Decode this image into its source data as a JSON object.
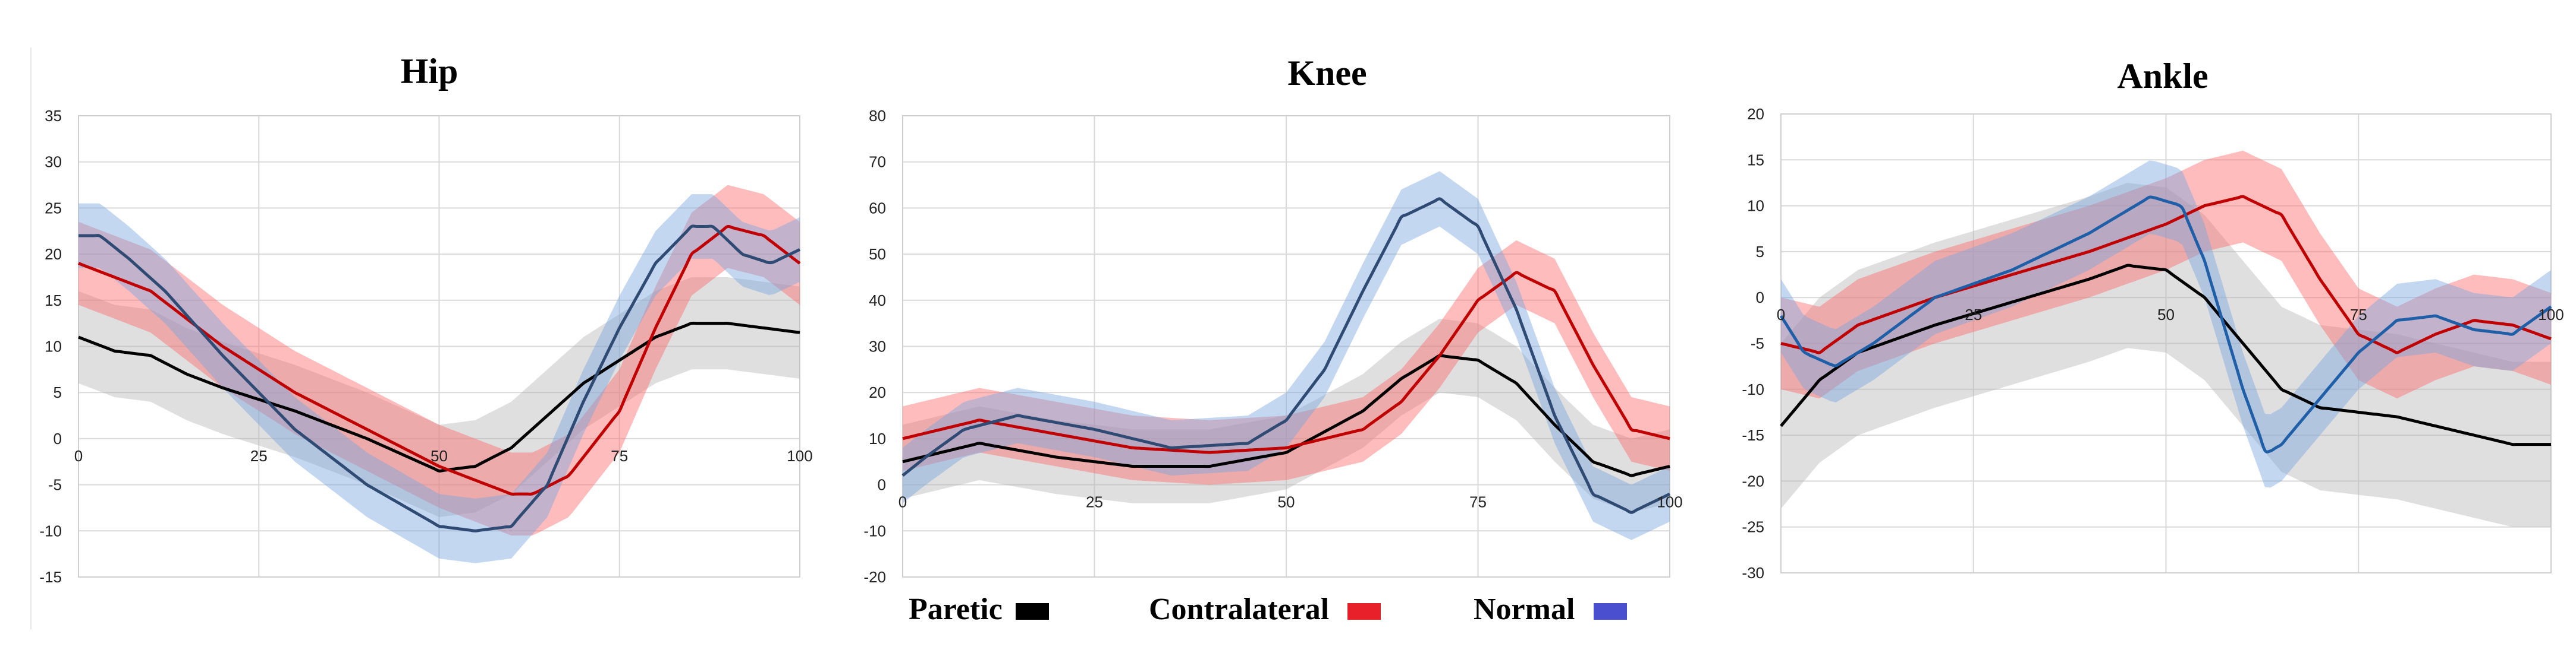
{
  "chart_data": [
    {
      "type": "line",
      "title": "Hip",
      "xlim": [
        0,
        100
      ],
      "ylim": [
        -15,
        35
      ],
      "xticks": [
        0,
        25,
        50,
        75,
        100
      ],
      "yticks": [
        -15,
        -10,
        -5,
        0,
        5,
        10,
        15,
        20,
        25,
        30,
        35
      ],
      "grid": true,
      "series": [
        {
          "name": "Paretic",
          "color": "#000000",
          "band_color": "#b3b3b3",
          "band_sd": 5,
          "x": [
            0,
            5,
            10,
            15,
            20,
            30,
            40,
            50,
            55,
            60,
            65,
            70,
            75,
            80,
            85,
            90,
            95,
            100
          ],
          "y": [
            11,
            9.5,
            9,
            7,
            5.5,
            3,
            0,
            -3.5,
            -3,
            -1,
            2.5,
            6,
            8.5,
            11,
            12.5,
            12.5,
            12,
            11.5
          ]
        },
        {
          "name": "Contralateral",
          "color": "#c00000",
          "band_color": "#ff6b6b",
          "band_sd": 4.5,
          "x": [
            0,
            5,
            10,
            15,
            20,
            30,
            40,
            50,
            55,
            60,
            63,
            68,
            75,
            80,
            85,
            90,
            95,
            100
          ],
          "y": [
            19,
            17.5,
            16,
            13,
            10,
            5,
            1,
            -3,
            -4.5,
            -6,
            -6,
            -4,
            3,
            12,
            20,
            23,
            22,
            19
          ]
        },
        {
          "name": "Normal",
          "color": "#2f4a73",
          "band_color": "#7aa6e0",
          "band_sd": 3.5,
          "x": [
            0,
            3,
            7,
            12,
            20,
            30,
            40,
            50,
            55,
            60,
            65,
            70,
            75,
            80,
            85,
            88,
            92,
            96,
            100
          ],
          "y": [
            22,
            22,
            19.5,
            16,
            9,
            1,
            -5,
            -9.5,
            -10,
            -9.5,
            -5,
            4,
            12,
            19,
            23,
            23,
            20,
            19,
            20.5
          ]
        }
      ]
    },
    {
      "type": "line",
      "title": "Knee",
      "xlim": [
        0,
        100
      ],
      "ylim": [
        -20,
        80
      ],
      "xticks": [
        0,
        25,
        50,
        75,
        100
      ],
      "yticks": [
        -20,
        -10,
        0,
        10,
        20,
        30,
        40,
        50,
        60,
        70,
        80
      ],
      "grid": true,
      "series": [
        {
          "name": "Paretic",
          "color": "#000000",
          "band_color": "#b3b3b3",
          "band_sd": 8,
          "x": [
            0,
            5,
            10,
            20,
            30,
            40,
            50,
            60,
            65,
            70,
            75,
            80,
            85,
            90,
            95,
            100
          ],
          "y": [
            5,
            7,
            9,
            6,
            4,
            4,
            7,
            16,
            23,
            28,
            27,
            22,
            13,
            5,
            2,
            4
          ]
        },
        {
          "name": "Contralateral",
          "color": "#c00000",
          "band_color": "#ff6b6b",
          "band_sd": 7,
          "x": [
            0,
            5,
            10,
            20,
            30,
            40,
            50,
            60,
            65,
            70,
            75,
            80,
            85,
            90,
            95,
            100
          ],
          "y": [
            10,
            12,
            14,
            11,
            8,
            7,
            8,
            12,
            18,
            28,
            40,
            46,
            42,
            26,
            12,
            10
          ]
        },
        {
          "name": "Normal",
          "color": "#2f4a73",
          "band_color": "#7aa6e0",
          "band_sd": 6,
          "x": [
            0,
            3,
            8,
            15,
            25,
            35,
            45,
            50,
            55,
            60,
            65,
            70,
            75,
            80,
            85,
            90,
            95,
            100
          ],
          "y": [
            2,
            6,
            12,
            15,
            12,
            8,
            9,
            14,
            25,
            42,
            58,
            62,
            56,
            38,
            15,
            -2,
            -6,
            -2
          ]
        }
      ]
    },
    {
      "type": "line",
      "title": "Ankle",
      "xlim": [
        0,
        100
      ],
      "ylim": [
        -30,
        20
      ],
      "xticks": [
        0,
        25,
        50,
        75,
        100
      ],
      "yticks": [
        -30,
        -25,
        -20,
        -15,
        -10,
        -5,
        0,
        5,
        10,
        15,
        20
      ],
      "grid": true,
      "series": [
        {
          "name": "Paretic",
          "color": "#000000",
          "band_color": "#b3b3b3",
          "band_sd": 9,
          "x": [
            0,
            5,
            10,
            20,
            30,
            40,
            45,
            50,
            55,
            60,
            65,
            70,
            80,
            90,
            95,
            100
          ],
          "y": [
            -14,
            -9,
            -6,
            -3,
            -0.5,
            2,
            3.5,
            3,
            0,
            -5,
            -10,
            -12,
            -13,
            -15,
            -16,
            -16
          ]
        },
        {
          "name": "Contralateral",
          "color": "#c00000",
          "band_color": "#ff6b6b",
          "band_sd": 5,
          "x": [
            0,
            5,
            10,
            20,
            30,
            40,
            50,
            55,
            60,
            65,
            70,
            75,
            80,
            85,
            90,
            95,
            100
          ],
          "y": [
            -5,
            -6,
            -3,
            0,
            2.5,
            5,
            8,
            10,
            11,
            9,
            2,
            -4,
            -6,
            -4,
            -2.5,
            -3,
            -4.5
          ]
        },
        {
          "name": "Normal",
          "color": "#1f5fa8",
          "band_color": "#7aa6e0",
          "band_sd": 4,
          "x": [
            0,
            3,
            7,
            12,
            20,
            30,
            40,
            48,
            52,
            55,
            60,
            63,
            65,
            70,
            75,
            80,
            85,
            90,
            95,
            100
          ],
          "y": [
            -2,
            -6,
            -7.5,
            -5,
            0,
            3,
            7,
            11,
            10,
            4,
            -10,
            -17,
            -16,
            -11,
            -6,
            -2.5,
            -2,
            -3.5,
            -4,
            -1
          ]
        }
      ]
    }
  ],
  "legend": [
    {
      "label": "Paretic",
      "color": "#000000"
    },
    {
      "label": "Contralateral",
      "color": "#e8202a"
    },
    {
      "label": "Normal",
      "color": "#4a4fd0"
    }
  ]
}
